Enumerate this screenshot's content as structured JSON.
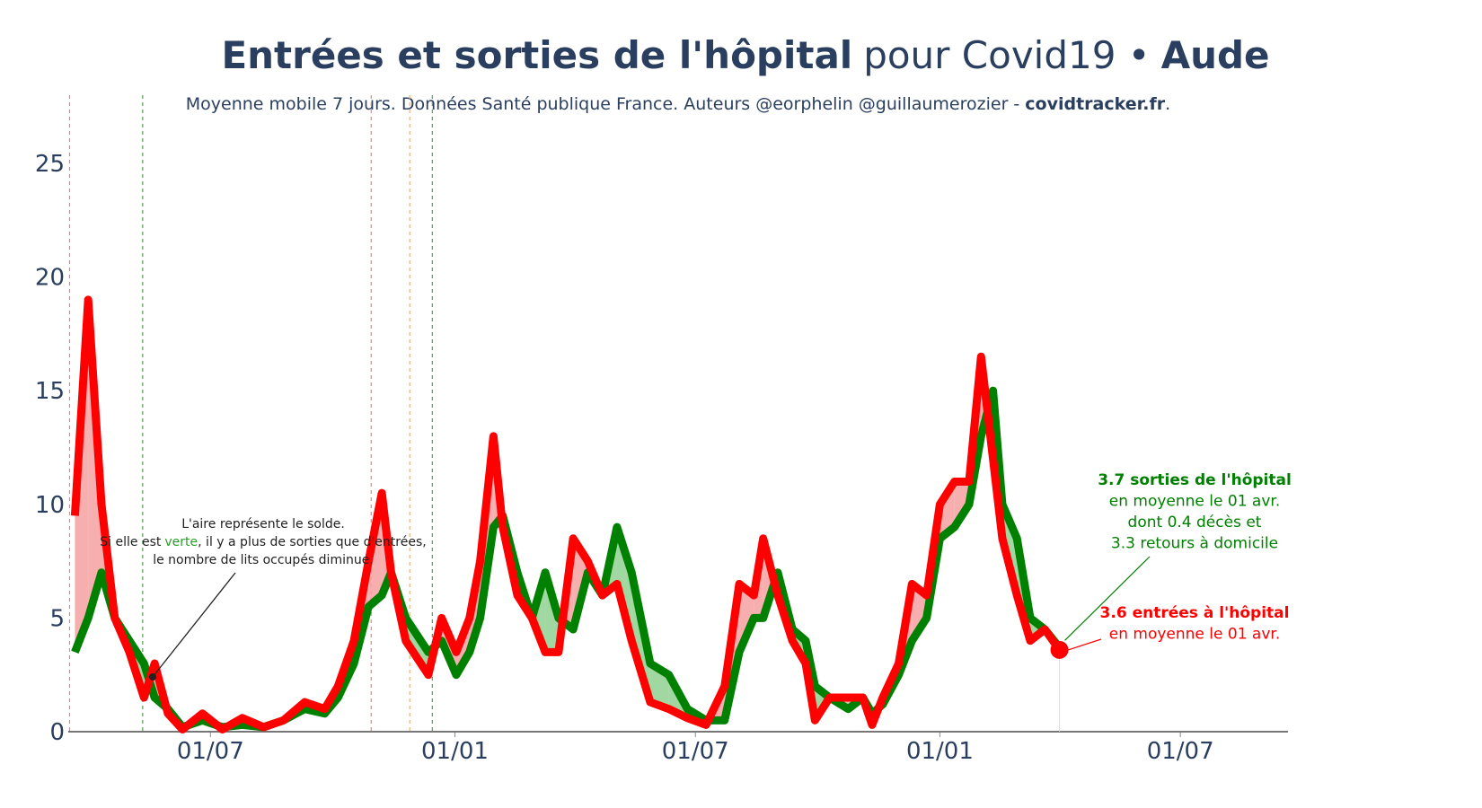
{
  "chart_data": {
    "type": "line",
    "title_parts": [
      "Entrées et sorties de l'hôpital",
      "pour Covid19 •",
      "Aude"
    ],
    "subtitle_parts": [
      "Moyenne mobile 7 jours. Données Santé publique France. Auteurs @eorphelin @guillaumerozier -",
      "covidtracker.fr",
      "."
    ],
    "x": [
      "2020-03-21",
      "2020-03-31",
      "2020-04-10",
      "2020-04-20",
      "2020-05-01",
      "2020-05-12",
      "2020-05-20",
      "2020-05-30",
      "2020-06-10",
      "2020-06-25",
      "2020-07-10",
      "2020-07-25",
      "2020-08-10",
      "2020-08-25",
      "2020-09-10",
      "2020-09-25",
      "2020-10-05",
      "2020-10-17",
      "2020-10-28",
      "2020-11-07",
      "2020-11-14",
      "2020-11-25",
      "2020-12-12",
      "2020-12-22",
      "2021-01-02",
      "2021-01-12",
      "2021-01-20",
      "2021-01-30",
      "2021-02-06",
      "2021-02-17",
      "2021-02-28",
      "2021-03-10",
      "2021-03-20",
      "2021-03-31",
      "2021-04-11",
      "2021-04-22",
      "2021-05-03",
      "2021-05-14",
      "2021-05-28",
      "2021-06-11",
      "2021-06-25",
      "2021-07-09",
      "2021-07-23",
      "2021-08-03",
      "2021-08-14",
      "2021-08-21",
      "2021-09-01",
      "2021-09-12",
      "2021-09-22",
      "2021-09-29",
      "2021-10-10",
      "2021-10-24",
      "2021-11-04",
      "2021-11-11",
      "2021-11-19",
      "2021-12-01",
      "2021-12-11",
      "2021-12-22",
      "2022-01-01",
      "2022-01-12",
      "2022-01-23",
      "2022-02-01",
      "2022-02-10",
      "2022-02-17",
      "2022-02-28",
      "2022-03-10",
      "2022-03-21",
      "2022-04-01"
    ],
    "series": [
      {
        "name": "sorties",
        "color": "#008000",
        "fill": "#90d090",
        "values": [
          3.5,
          5,
          7,
          5,
          4,
          3,
          1.5,
          1,
          0.2,
          0.5,
          0.2,
          0.3,
          0.2,
          0.5,
          1,
          0.8,
          1.5,
          3,
          5.5,
          6,
          7,
          5,
          3.5,
          4,
          2.5,
          3.5,
          5,
          9,
          9.5,
          7,
          5,
          7,
          5,
          4.5,
          7,
          6,
          9,
          7,
          3,
          2.5,
          1,
          0.5,
          0.5,
          3.5,
          5,
          5,
          7,
          4.5,
          4,
          2,
          1.5,
          1,
          1.5,
          0.8,
          1.2,
          2.5,
          4,
          5,
          8.5,
          9,
          10,
          13,
          15,
          10,
          8.5,
          5,
          4.5,
          3.7
        ]
      },
      {
        "name": "entrées",
        "color": "#ff0000",
        "fill": "#f4a0a0",
        "values": [
          9.5,
          19,
          10,
          5,
          3.5,
          1.5,
          3,
          0.8,
          0.1,
          0.8,
          0.1,
          0.6,
          0.2,
          0.5,
          1.3,
          1,
          2,
          4,
          7.5,
          10.5,
          7,
          4,
          2.5,
          5,
          3.5,
          5,
          7.5,
          13,
          9,
          6,
          5,
          3.5,
          3.5,
          8.5,
          7.5,
          6,
          6.5,
          4,
          1.3,
          1,
          0.6,
          0.3,
          2,
          6.5,
          6,
          8.5,
          6,
          4,
          3,
          0.5,
          1.5,
          1.5,
          1.5,
          0.3,
          1.5,
          3,
          6.5,
          6,
          10,
          11,
          11,
          16.5,
          12,
          8.5,
          6,
          4,
          4.5,
          3.6
        ]
      }
    ],
    "xlim": [
      "2020-03-16",
      "2022-09-20"
    ],
    "xticks": [
      {
        "value": "2020-07-01",
        "label": "01/07"
      },
      {
        "value": "2021-01-01",
        "label": "01/01"
      },
      {
        "value": "2021-07-01",
        "label": "01/07"
      },
      {
        "value": "2022-01-01",
        "label": "01/01"
      },
      {
        "value": "2022-07-01",
        "label": "01/07"
      }
    ],
    "ylim": [
      0,
      28
    ],
    "yticks": [
      0,
      5,
      10,
      15,
      20,
      25
    ],
    "event_lines": [
      {
        "x": "2020-03-17",
        "color": "#f08080"
      },
      {
        "x": "2020-05-11",
        "color": "#5a9a5a"
      },
      {
        "x": "2020-10-30",
        "color": "#f08080"
      },
      {
        "x": "2020-11-28",
        "color": "#f5b070"
      },
      {
        "x": "2020-12-15",
        "color": "#5a9a5a"
      }
    ],
    "note_lines": [
      "L'aire représente le solde.",
      [
        "Si elle est",
        "verte",
        ", il y a plus de sorties que d'entrées,"
      ],
      "le nombre de lits occupés diminue."
    ],
    "exits_label": [
      "3.7 sorties de l'hôpital",
      "en moyenne le 01 avr.",
      "dont 0.4 décès et",
      "3.3 retours à domicile"
    ],
    "entries_label": [
      "3.6 entrées à l'hôpital",
      "en moyenne le 01 avr."
    ]
  }
}
